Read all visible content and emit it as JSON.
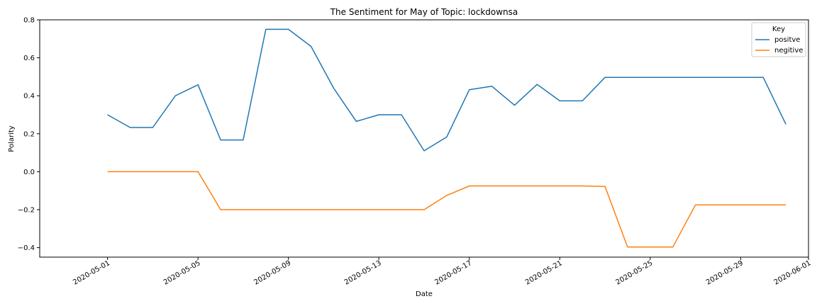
{
  "chart_data": {
    "type": "line",
    "title": "The Sentiment for May of Topic: lockdownsa",
    "xlabel": "Date",
    "ylabel": "Polarity",
    "xlim": [
      "2020-04-28",
      "2020-06-01"
    ],
    "ylim": [
      -0.45,
      0.8
    ],
    "yticks": [
      0.8,
      0.6,
      0.4,
      0.2,
      0.0,
      -0.2,
      -0.4
    ],
    "ytick_labels": [
      "0.8",
      "0.6",
      "0.4",
      "0.2",
      "0.0",
      "−0.2",
      "−0.4"
    ],
    "xticks": [
      "2020-05-01",
      "2020-05-05",
      "2020-05-09",
      "2020-05-13",
      "2020-05-17",
      "2020-05-21",
      "2020-05-25",
      "2020-05-29",
      "2020-06-01"
    ],
    "grid": false,
    "legend": {
      "title": "Key",
      "placement": "top-right"
    },
    "x": [
      "2020-05-01",
      "2020-05-02",
      "2020-05-03",
      "2020-05-04",
      "2020-05-05",
      "2020-05-06",
      "2020-05-07",
      "2020-05-08",
      "2020-05-09",
      "2020-05-10",
      "2020-05-11",
      "2020-05-12",
      "2020-05-13",
      "2020-05-14",
      "2020-05-15",
      "2020-05-16",
      "2020-05-17",
      "2020-05-18",
      "2020-05-19",
      "2020-05-20",
      "2020-05-21",
      "2020-05-22",
      "2020-05-23",
      "2020-05-24",
      "2020-05-25",
      "2020-05-26",
      "2020-05-27",
      "2020-05-28",
      "2020-05-29",
      "2020-05-30",
      "2020-05-31"
    ],
    "series": [
      {
        "name": "positve",
        "color": "#1f77b4",
        "values": [
          0.3,
          0.233,
          0.233,
          0.4,
          0.458,
          0.167,
          0.167,
          0.75,
          0.75,
          0.66,
          0.44,
          0.265,
          0.3,
          0.3,
          0.11,
          0.183,
          0.432,
          0.45,
          0.35,
          0.46,
          0.373,
          0.373,
          0.497,
          0.497,
          0.497,
          0.497,
          0.497,
          0.497,
          0.497,
          0.497,
          0.25
        ]
      },
      {
        "name": "negitive",
        "color": "#ff7f0e",
        "values": [
          0.0,
          0.0,
          0.0,
          0.0,
          0.0,
          -0.2,
          -0.2,
          -0.2,
          -0.2,
          -0.2,
          -0.2,
          -0.2,
          -0.2,
          -0.2,
          -0.2,
          -0.125,
          -0.075,
          -0.075,
          -0.075,
          -0.075,
          -0.075,
          -0.075,
          -0.078,
          -0.397,
          -0.397,
          -0.397,
          -0.175,
          -0.175,
          -0.175,
          -0.175,
          -0.175
        ]
      }
    ]
  }
}
